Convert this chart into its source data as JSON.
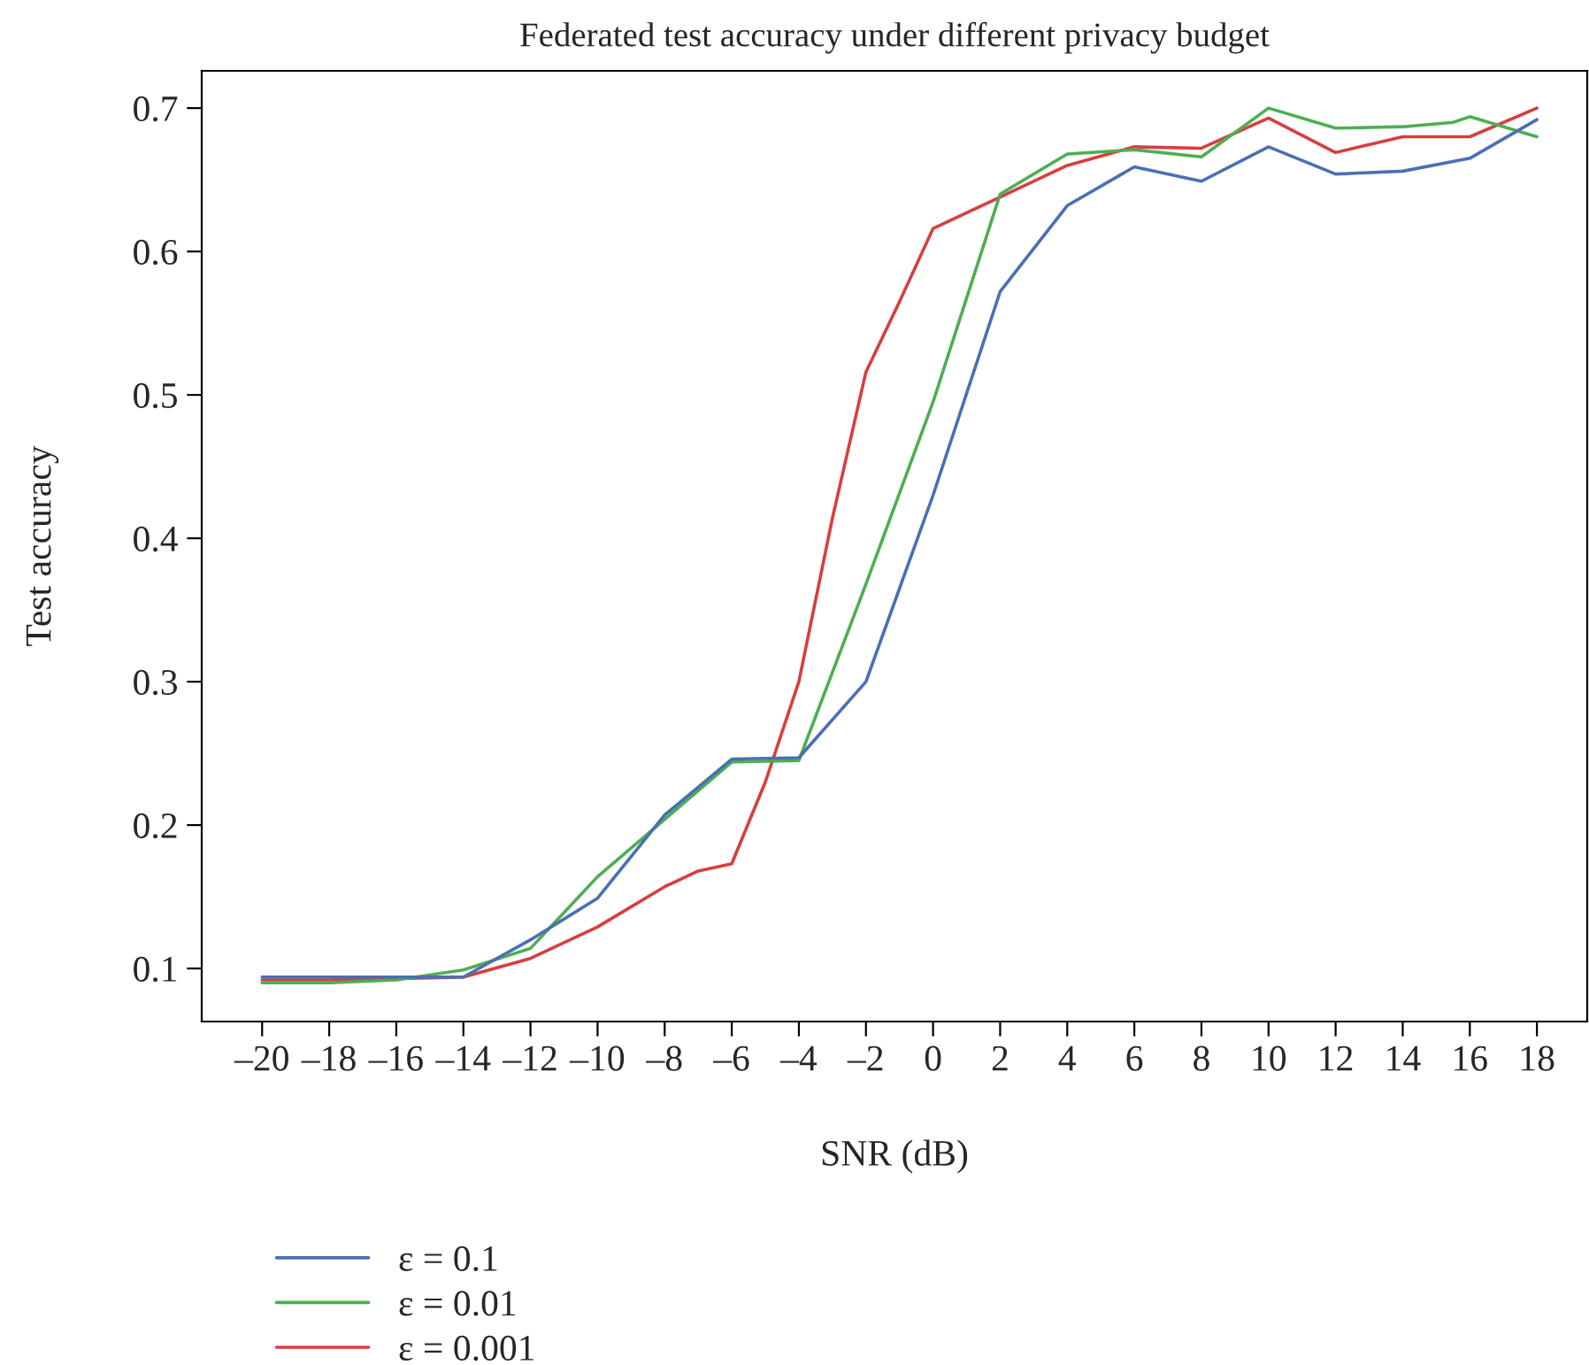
{
  "chart_data": {
    "type": "line",
    "title": "Federated test accuracy under different privacy budget",
    "xlabel": "SNR (dB)",
    "ylabel": "Test accuracy",
    "xlim": [
      -21.8,
      19.5
    ],
    "ylim": [
      0.063,
      0.726
    ],
    "xticks": [
      {
        "value": -20,
        "label": "–20"
      },
      {
        "value": -18,
        "label": "–18"
      },
      {
        "value": -16,
        "label": "–16"
      },
      {
        "value": -14,
        "label": "–14"
      },
      {
        "value": -12,
        "label": "–12"
      },
      {
        "value": -10,
        "label": "–10"
      },
      {
        "value": -8,
        "label": "–8"
      },
      {
        "value": -6,
        "label": "–6"
      },
      {
        "value": -4,
        "label": "–4"
      },
      {
        "value": -2,
        "label": "–2"
      },
      0,
      2,
      4,
      6,
      8,
      10,
      12,
      14,
      16,
      18
    ],
    "yticks": [
      0.1,
      0.2,
      0.3,
      0.4,
      0.5,
      0.6,
      0.7
    ],
    "grid": false,
    "legend": "bottom left",
    "series": [
      {
        "name": "ε = 0.1",
        "color": "#4a6fb5",
        "x": [
          -20,
          -18,
          -16,
          -14,
          -12,
          -10,
          -8,
          -6,
          -4,
          -2,
          0,
          2,
          4,
          6,
          8,
          10,
          12,
          14,
          16,
          18
        ],
        "values": [
          0.094,
          0.094,
          0.094,
          0.094,
          0.12,
          0.149,
          0.207,
          0.246,
          0.247,
          0.3,
          0.43,
          0.572,
          0.632,
          0.659,
          0.649,
          0.673,
          0.654,
          0.656,
          0.665,
          0.692
        ]
      },
      {
        "name": "ε = 0.01",
        "color": "#4caf50",
        "x": [
          -20,
          -18,
          -16,
          -14,
          -12,
          -10,
          -8,
          -6,
          -4,
          -2,
          0,
          2,
          4,
          6,
          8,
          10,
          12,
          14,
          15.5,
          16,
          18
        ],
        "values": [
          0.09,
          0.09,
          0.092,
          0.099,
          0.114,
          0.164,
          0.204,
          0.244,
          0.245,
          0.368,
          0.495,
          0.64,
          0.668,
          0.671,
          0.666,
          0.7,
          0.686,
          0.687,
          0.69,
          0.694,
          0.68
        ]
      },
      {
        "name": "ε = 0.001",
        "color": "#d63f3f",
        "x": [
          -20,
          -18,
          -16,
          -14,
          -12,
          -10,
          -9,
          -8,
          -7,
          -6,
          -5,
          -4,
          -3,
          -2,
          -1,
          0,
          2,
          4,
          6,
          8,
          10,
          12,
          14,
          16,
          18
        ],
        "values": [
          0.092,
          0.092,
          0.093,
          0.094,
          0.107,
          0.129,
          0.143,
          0.157,
          0.168,
          0.173,
          0.23,
          0.3,
          0.414,
          0.516,
          0.565,
          0.616,
          0.638,
          0.66,
          0.673,
          0.672,
          0.693,
          0.669,
          0.68,
          0.68,
          0.7
        ]
      }
    ]
  }
}
